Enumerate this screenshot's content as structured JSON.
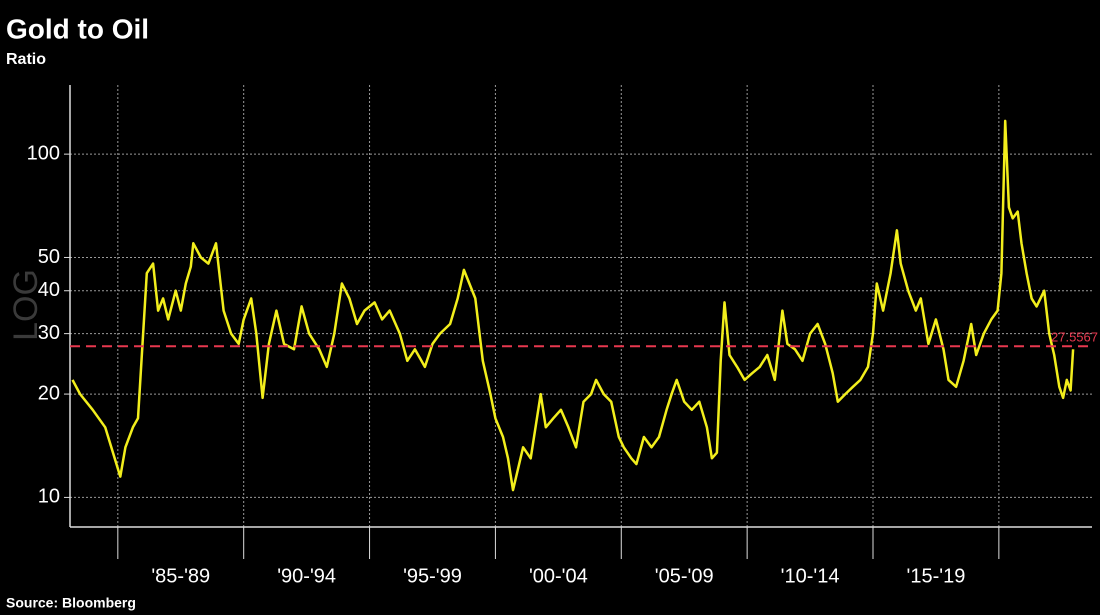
{
  "chart_data": {
    "type": "line",
    "title": "Gold to Oil",
    "subtitle": "Ratio",
    "source": "Source: Bloomberg",
    "watermark": "LOG",
    "log_scale": true,
    "grid": true,
    "background": "#000000",
    "xlim": [
      1983.1,
      2023.7
    ],
    "xticks": [
      1985,
      1990,
      1995,
      2000,
      2005,
      2010,
      2015,
      2020
    ],
    "period_labels": [
      "'85-'89",
      "'90-'94",
      "'95-'99",
      "'00-'04",
      "'05-'09",
      "'10-'14",
      "'15-'19"
    ],
    "ylim": [
      8.2,
      159
    ],
    "yticks": [
      10,
      20,
      30,
      40,
      50,
      100
    ],
    "reference_line": {
      "value": 27.5567,
      "label": "27.5567",
      "color": "#e8384f"
    },
    "series": [
      {
        "name": "Gold to Oil",
        "color": "#f2ee1c",
        "x": [
          1983.2,
          1983.5,
          1984.0,
          1984.5,
          1985.1,
          1985.3,
          1985.6,
          1985.8,
          1986.15,
          1986.4,
          1986.6,
          1986.8,
          1987.0,
          1987.3,
          1987.5,
          1987.7,
          1987.9,
          1988.0,
          1988.3,
          1988.6,
          1988.9,
          1989.2,
          1989.5,
          1989.8,
          1990.0,
          1990.3,
          1990.5,
          1990.75,
          1991.0,
          1991.3,
          1991.6,
          1992.0,
          1992.3,
          1992.6,
          1993.0,
          1993.3,
          1993.6,
          1993.9,
          1994.2,
          1994.5,
          1994.8,
          1995.2,
          1995.5,
          1995.8,
          1996.2,
          1996.5,
          1996.8,
          1997.2,
          1997.5,
          1997.8,
          1998.2,
          1998.5,
          1998.75,
          1999.2,
          1999.5,
          1999.8,
          2000.0,
          2000.3,
          2000.5,
          2000.7,
          2001.1,
          2001.4,
          2001.8,
          2002.0,
          2002.3,
          2002.6,
          2002.9,
          2003.2,
          2003.5,
          2003.8,
          2004.0,
          2004.3,
          2004.6,
          2004.9,
          2005.1,
          2005.4,
          2005.6,
          2005.9,
          2006.2,
          2006.5,
          2006.8,
          2007.0,
          2007.2,
          2007.5,
          2007.8,
          2008.1,
          2008.4,
          2008.6,
          2008.8,
          2008.95,
          2009.1,
          2009.3,
          2009.6,
          2009.9,
          2010.2,
          2010.5,
          2010.8,
          2011.1,
          2011.4,
          2011.6,
          2011.9,
          2012.2,
          2012.5,
          2012.8,
          2013.1,
          2013.4,
          2013.6,
          2013.9,
          2014.2,
          2014.5,
          2014.8,
          2015.0,
          2015.15,
          2015.4,
          2015.7,
          2015.95,
          2016.1,
          2016.4,
          2016.7,
          2016.9,
          2017.2,
          2017.5,
          2017.8,
          2018.0,
          2018.3,
          2018.6,
          2018.9,
          2019.1,
          2019.4,
          2019.7,
          2019.95,
          2020.1,
          2020.25,
          2020.4,
          2020.55,
          2020.75,
          2020.9,
          2021.1,
          2021.3,
          2021.5,
          2021.8,
          2022.0,
          2022.2,
          2022.4,
          2022.55,
          2022.7,
          2022.85,
          2022.95
        ],
        "values": [
          22,
          20,
          18,
          16,
          11.5,
          14,
          16,
          17,
          45,
          48,
          35,
          38,
          33,
          40,
          35,
          42,
          47,
          55,
          50,
          48,
          55,
          35,
          30,
          28,
          33,
          38,
          30,
          19.5,
          28,
          35,
          28,
          27,
          36,
          30,
          27,
          24,
          30,
          42,
          38,
          32,
          35,
          37,
          33,
          35,
          30,
          25,
          27,
          24,
          28,
          30,
          32,
          38,
          46,
          38,
          25,
          20,
          17,
          15,
          13,
          10.5,
          14,
          13,
          20,
          16,
          17,
          18,
          16,
          14,
          19,
          20,
          22,
          20,
          19,
          15,
          14,
          13,
          12.5,
          15,
          14,
          15,
          18,
          20,
          22,
          19,
          18,
          19,
          16,
          13,
          13.5,
          25,
          37,
          26,
          24,
          22,
          23,
          24,
          26,
          22,
          35,
          28,
          27,
          25,
          30,
          32,
          28,
          23,
          19,
          20,
          21,
          22,
          24,
          30,
          42,
          35,
          45,
          60,
          48,
          40,
          35,
          38,
          28,
          33,
          27,
          22,
          21,
          25,
          32,
          26,
          30,
          33,
          35,
          45,
          125,
          70,
          65,
          68,
          55,
          45,
          38,
          36,
          40,
          30,
          26,
          21,
          19.5,
          22,
          20.5,
          27
        ]
      }
    ]
  }
}
